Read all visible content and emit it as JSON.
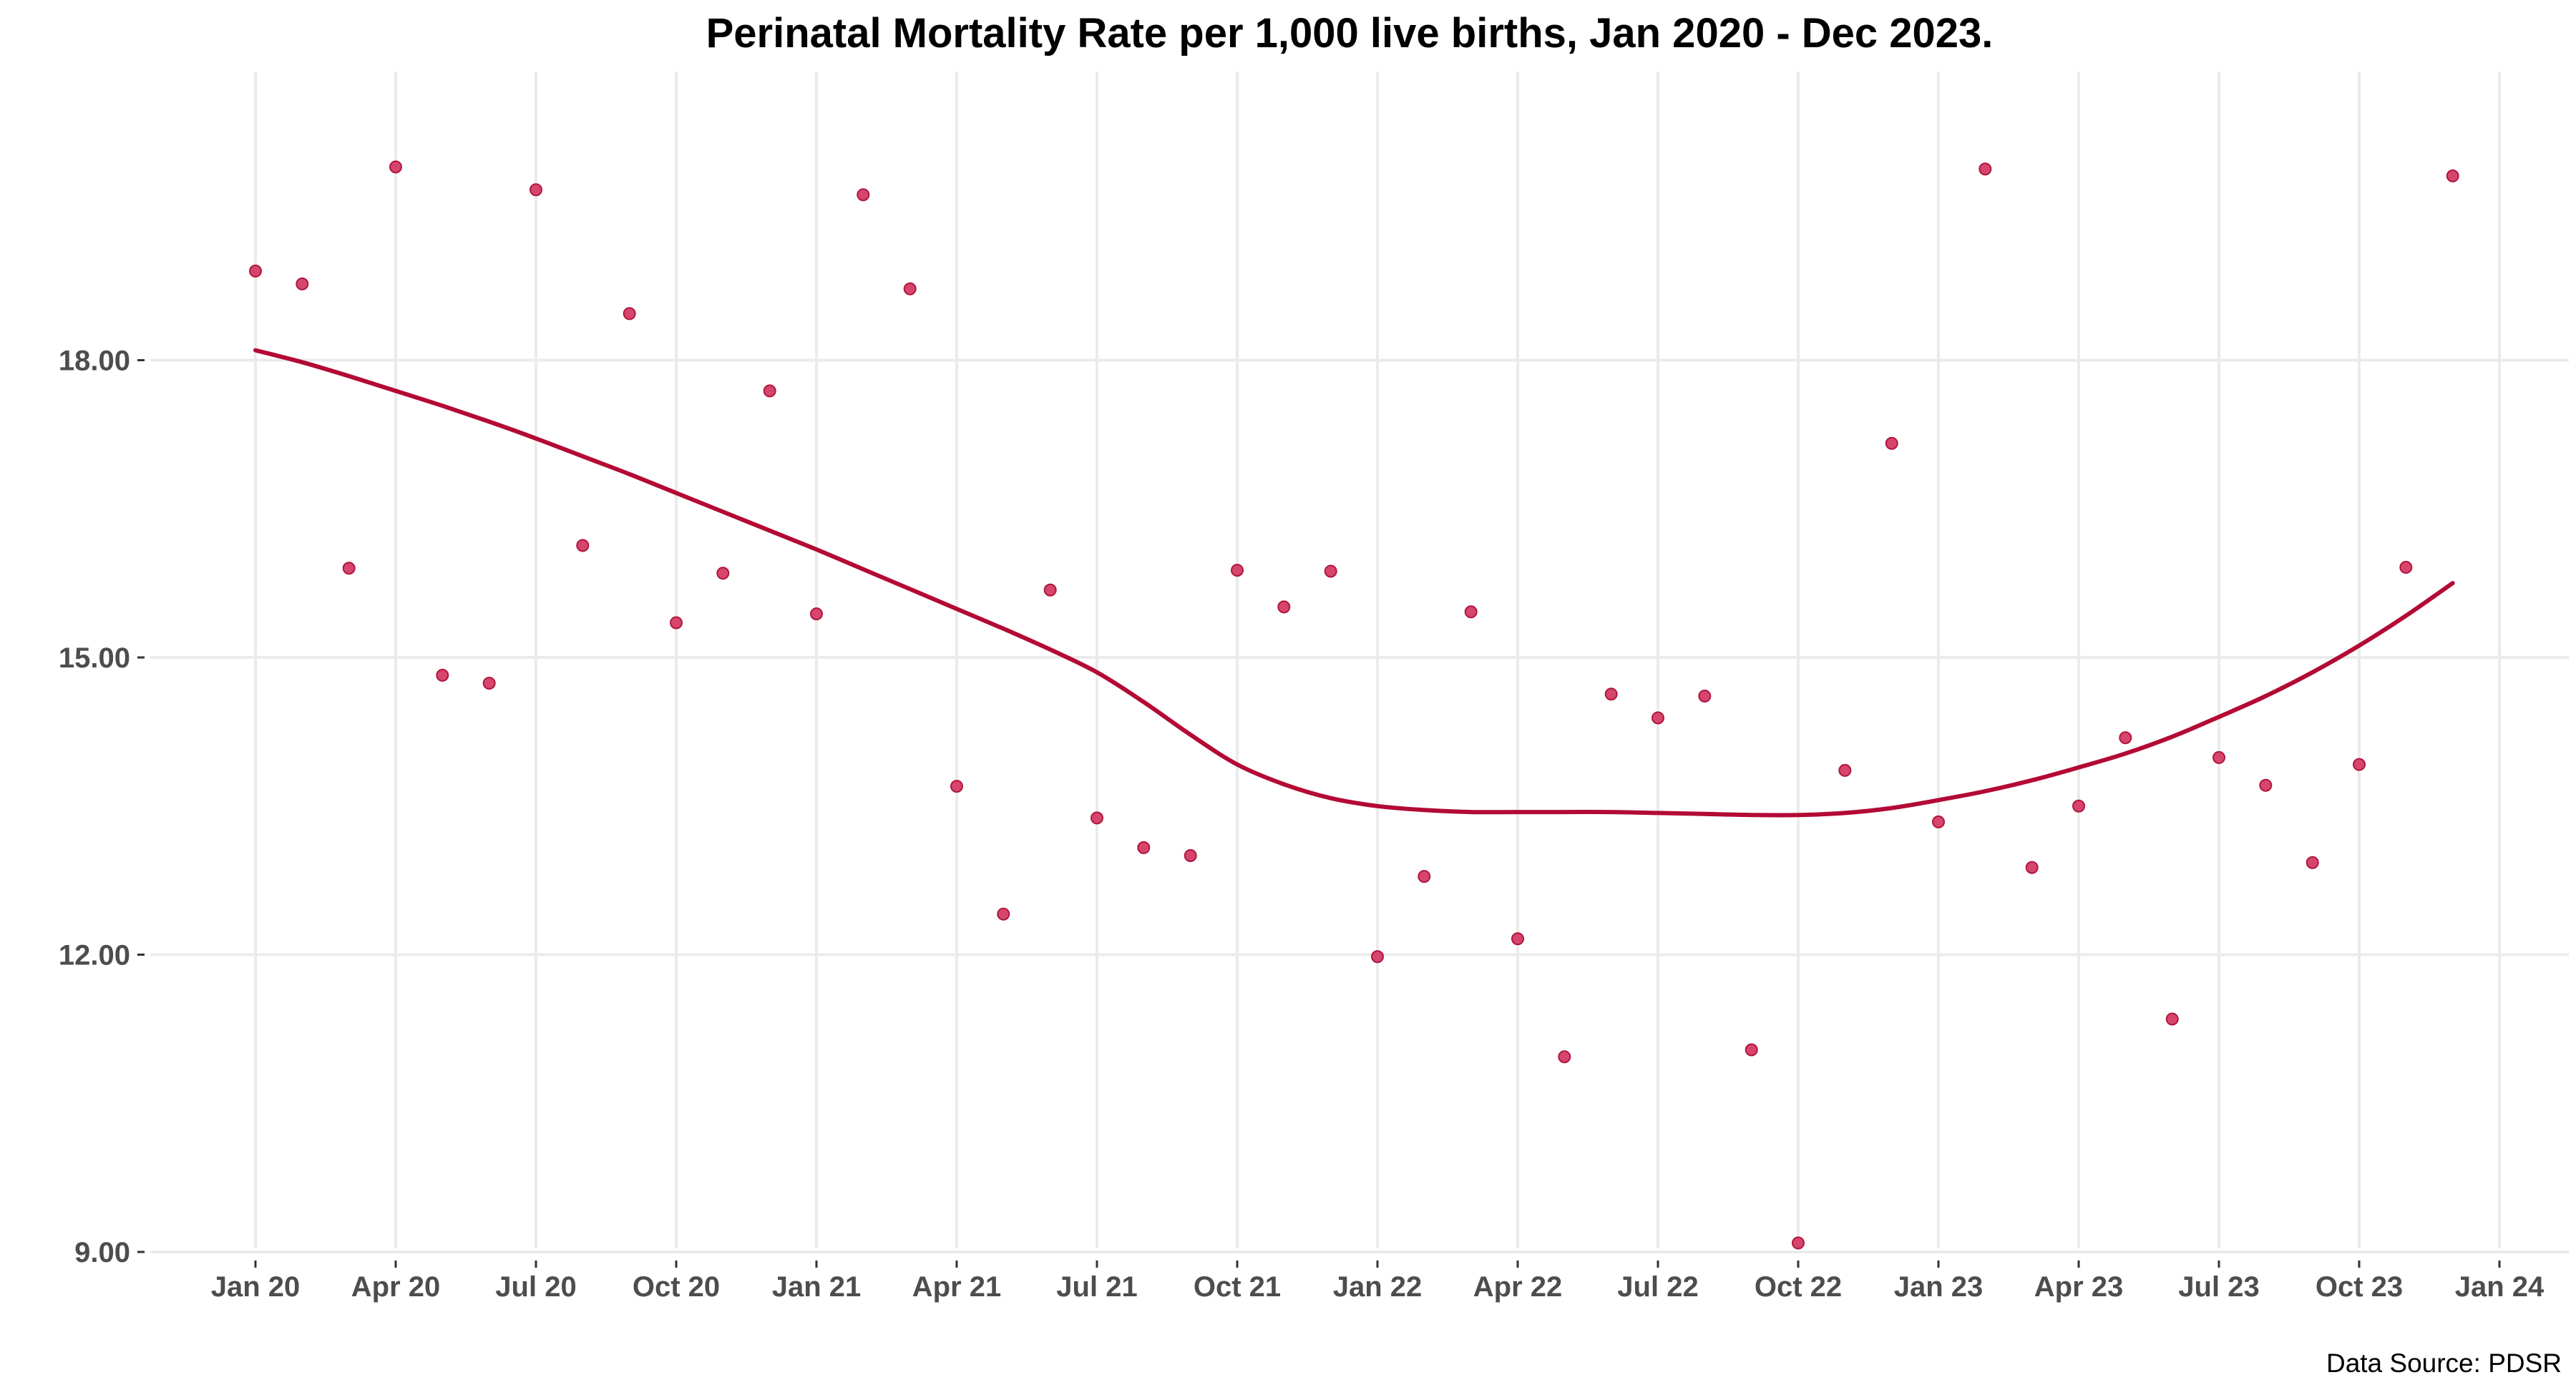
{
  "chart_data": {
    "type": "scatter",
    "title": "Perinatal Mortality Rate per 1,000 live births, Jan 2020 - Dec 2023.",
    "xlabel": "",
    "ylabel": "",
    "source": "Data Source: PDSR",
    "x_tick_labels": [
      "Jan 20",
      "Apr 20",
      "Jul 20",
      "Oct 20",
      "Jan 21",
      "Apr 21",
      "Jul 21",
      "Oct 21",
      "Jan 22",
      "Apr 22",
      "Jul 22",
      "Oct 22",
      "Jan 23",
      "Apr 23",
      "Jul 23",
      "Oct 23",
      "Jan 24"
    ],
    "y_tick_labels": [
      "9.00",
      "12.00",
      "15.00",
      "18.00"
    ],
    "y_ticks": [
      9,
      12,
      15,
      18
    ],
    "xlim": [
      "2019-10",
      "2024-03"
    ],
    "ylim": [
      8.6,
      20.8
    ],
    "grid": true,
    "legend": "none",
    "point_color": "#d6456b",
    "line_color": "#b30a35",
    "x": [
      "2020-01",
      "2020-02",
      "2020-03",
      "2020-04",
      "2020-05",
      "2020-06",
      "2020-07",
      "2020-08",
      "2020-09",
      "2020-10",
      "2020-11",
      "2020-12",
      "2021-01",
      "2021-02",
      "2021-03",
      "2021-04",
      "2021-05",
      "2021-06",
      "2021-07",
      "2021-08",
      "2021-09",
      "2021-10",
      "2021-11",
      "2021-12",
      "2022-01",
      "2022-02",
      "2022-03",
      "2022-04",
      "2022-05",
      "2022-06",
      "2022-07",
      "2022-08",
      "2022-09",
      "2022-10",
      "2022-11",
      "2022-12",
      "2023-01",
      "2023-02",
      "2023-03",
      "2023-04",
      "2023-05",
      "2023-06",
      "2023-07",
      "2023-08",
      "2023-09",
      "2023-10",
      "2023-11",
      "2023-12"
    ],
    "series": [
      {
        "kind": "points",
        "values": [
          18.9,
          18.77,
          15.9,
          19.95,
          14.82,
          14.74,
          19.72,
          16.13,
          18.47,
          15.35,
          15.85,
          17.69,
          15.44,
          19.67,
          18.72,
          13.7,
          12.41,
          15.68,
          13.38,
          13.08,
          13.0,
          15.88,
          15.51,
          15.87,
          11.98,
          12.79,
          15.46,
          12.16,
          10.97,
          14.63,
          14.39,
          14.61,
          11.04,
          9.09,
          13.86,
          17.16,
          13.34,
          19.93,
          12.88,
          13.5,
          14.19,
          11.35,
          13.99,
          13.71,
          12.93,
          13.92,
          15.91,
          19.86
        ]
      },
      {
        "kind": "smooth",
        "values": [
          18.1,
          17.98,
          17.84,
          17.69,
          17.54,
          17.38,
          17.21,
          17.03,
          16.85,
          16.66,
          16.47,
          16.28,
          16.09,
          15.89,
          15.69,
          15.49,
          15.29,
          15.08,
          14.85,
          14.55,
          14.22,
          13.92,
          13.72,
          13.58,
          13.5,
          13.46,
          13.44,
          13.44,
          13.44,
          13.44,
          13.43,
          13.42,
          13.41,
          13.41,
          13.43,
          13.48,
          13.56,
          13.65,
          13.76,
          13.89,
          14.03,
          14.2,
          14.4,
          14.61,
          14.85,
          15.12,
          15.42,
          15.75
        ]
      }
    ]
  }
}
